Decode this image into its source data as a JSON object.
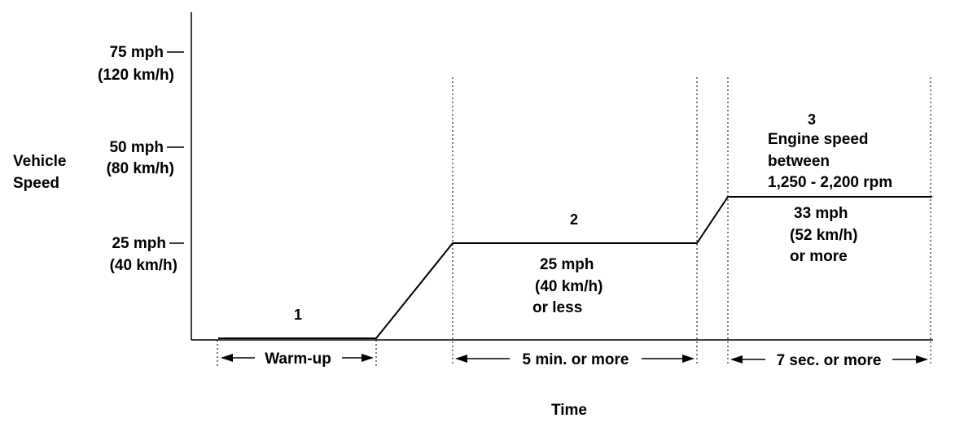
{
  "y_axis": {
    "label_line1": "Vehicle",
    "label_line2": "Speed",
    "ticks": [
      {
        "speed": "75 mph",
        "metric": "(120 km/h)"
      },
      {
        "speed": "50 mph",
        "metric": "(80 km/h)"
      },
      {
        "speed": "25 mph",
        "metric": "(40 km/h)"
      }
    ]
  },
  "x_axis": {
    "label": "Time"
  },
  "stages": [
    {
      "number": "1",
      "duration": "Warm-up"
    },
    {
      "number": "2",
      "condition": [
        "25 mph",
        "(40 km/h)",
        "or less"
      ],
      "duration": "5 min. or more"
    },
    {
      "number": "3",
      "note": [
        "Engine speed",
        "between",
        "1,250 - 2,200 rpm"
      ],
      "condition": [
        "33 mph",
        "(52 km/h)",
        "or more"
      ],
      "duration": "7 sec. or more"
    }
  ]
}
